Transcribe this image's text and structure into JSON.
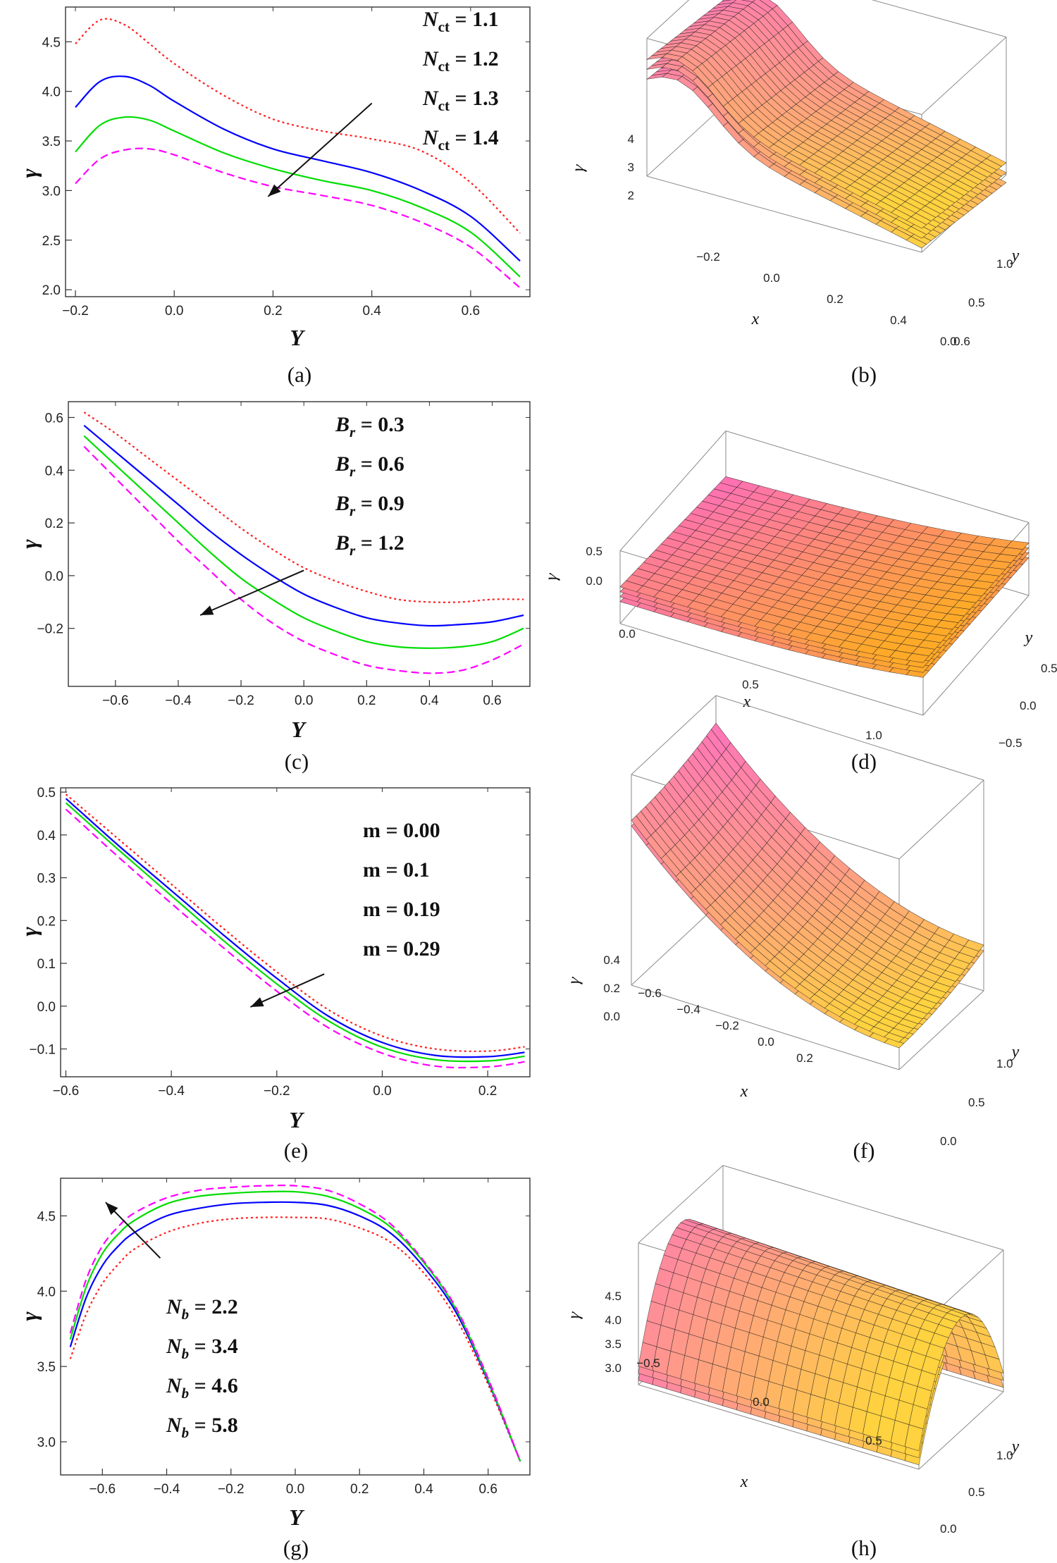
{
  "chart_data": [
    {
      "panel": "a",
      "type": "line",
      "caption": "(a)",
      "xlabel": "Y",
      "ylabel": "γ",
      "xlim": [
        -0.22,
        0.72
      ],
      "ylim": [
        1.93,
        4.85
      ],
      "xticks": [
        "-0.2",
        "0.0",
        "0.2",
        "0.4",
        "0.6"
      ],
      "yticks": [
        "2.0",
        "2.5",
        "3.0",
        "3.5",
        "4.0",
        "4.5"
      ],
      "legend": [
        "N_ct = 1.1",
        "N_ct = 1.2",
        "N_ct = 1.3",
        "N_ct = 1.4"
      ],
      "legend_placement": "top-right",
      "series": [
        {
          "name": "N_ct = 1.1",
          "color": "#ff2020",
          "style": "dotted",
          "x": [
            -0.2,
            -0.15,
            -0.1,
            -0.05,
            0.0,
            0.1,
            0.2,
            0.3,
            0.4,
            0.5,
            0.6,
            0.7
          ],
          "y": [
            4.48,
            4.72,
            4.67,
            4.48,
            4.28,
            3.96,
            3.72,
            3.6,
            3.52,
            3.4,
            3.08,
            2.57
          ]
        },
        {
          "name": "N_ct = 1.2",
          "color": "#0000ff",
          "style": "solid",
          "x": [
            -0.2,
            -0.15,
            -0.1,
            -0.05,
            0.0,
            0.1,
            0.2,
            0.3,
            0.4,
            0.5,
            0.6,
            0.7
          ],
          "y": [
            3.84,
            4.1,
            4.15,
            4.06,
            3.9,
            3.62,
            3.42,
            3.3,
            3.18,
            3.0,
            2.74,
            2.29
          ]
        },
        {
          "name": "N_ct = 1.3",
          "color": "#00dd00",
          "style": "solid",
          "x": [
            -0.2,
            -0.15,
            -0.1,
            -0.05,
            0.0,
            0.1,
            0.2,
            0.3,
            0.4,
            0.5,
            0.6,
            0.7
          ],
          "y": [
            3.39,
            3.66,
            3.74,
            3.71,
            3.6,
            3.38,
            3.22,
            3.1,
            3.0,
            2.83,
            2.58,
            2.13
          ]
        },
        {
          "name": "N_ct = 1.4",
          "color": "#ff00ff",
          "style": "dashed",
          "x": [
            -0.2,
            -0.15,
            -0.1,
            -0.05,
            0.0,
            0.1,
            0.2,
            0.3,
            0.4,
            0.5,
            0.6,
            0.7
          ],
          "y": [
            3.07,
            3.32,
            3.41,
            3.42,
            3.36,
            3.18,
            3.04,
            2.95,
            2.85,
            2.68,
            2.43,
            2.02
          ]
        }
      ],
      "annotations": [
        {
          "type": "arrow",
          "from": [
            0.4,
            3.88
          ],
          "to": [
            0.19,
            2.94
          ],
          "meaning": "increasing parameter"
        }
      ]
    },
    {
      "panel": "c",
      "type": "line",
      "caption": "(c)",
      "xlabel": "Y",
      "ylabel": "γ",
      "xlim": [
        -0.75,
        0.72
      ],
      "ylim": [
        -0.42,
        0.66
      ],
      "xticks": [
        "-0.6",
        "-0.4",
        "-0.2",
        "0.0",
        "0.2",
        "0.4",
        "0.6"
      ],
      "yticks": [
        "-0.2",
        "0.0",
        "0.2",
        "0.4",
        "0.6"
      ],
      "legend": [
        "B_r = 0.3",
        "B_r = 0.6",
        "B_r = 0.9",
        "B_r = 1.2"
      ],
      "legend_placement": "top-right",
      "series": [
        {
          "name": "B_r = 0.3",
          "color": "#ff2020",
          "style": "dotted",
          "x": [
            -0.7,
            -0.6,
            -0.5,
            -0.4,
            -0.3,
            -0.2,
            -0.1,
            0.0,
            0.1,
            0.2,
            0.3,
            0.4,
            0.5,
            0.6,
            0.7
          ],
          "y": [
            0.62,
            0.54,
            0.45,
            0.36,
            0.27,
            0.18,
            0.1,
            0.03,
            -0.02,
            -0.06,
            -0.09,
            -0.1,
            -0.1,
            -0.09,
            -0.09
          ]
        },
        {
          "name": "B_r = 0.6",
          "color": "#0000ff",
          "style": "solid",
          "x": [
            -0.7,
            -0.6,
            -0.5,
            -0.4,
            -0.3,
            -0.2,
            -0.1,
            0.0,
            0.1,
            0.2,
            0.3,
            0.4,
            0.5,
            0.6,
            0.7
          ],
          "y": [
            0.57,
            0.47,
            0.37,
            0.27,
            0.17,
            0.08,
            0.0,
            -0.07,
            -0.12,
            -0.16,
            -0.18,
            -0.19,
            -0.185,
            -0.175,
            -0.15
          ]
        },
        {
          "name": "B_r = 0.9",
          "color": "#00dd00",
          "style": "solid",
          "x": [
            -0.7,
            -0.6,
            -0.5,
            -0.4,
            -0.3,
            -0.2,
            -0.1,
            0.0,
            0.1,
            0.2,
            0.3,
            0.4,
            0.5,
            0.6,
            0.7
          ],
          "y": [
            0.53,
            0.42,
            0.31,
            0.2,
            0.09,
            -0.01,
            -0.09,
            -0.16,
            -0.21,
            -0.25,
            -0.27,
            -0.275,
            -0.27,
            -0.25,
            -0.2
          ]
        },
        {
          "name": "B_r = 1.2",
          "color": "#ff00ff",
          "style": "dashed",
          "x": [
            -0.7,
            -0.6,
            -0.5,
            -0.4,
            -0.3,
            -0.2,
            -0.1,
            0.0,
            0.1,
            0.2,
            0.3,
            0.4,
            0.5,
            0.6,
            0.7
          ],
          "y": [
            0.49,
            0.37,
            0.25,
            0.13,
            0.02,
            -0.09,
            -0.18,
            -0.25,
            -0.3,
            -0.34,
            -0.36,
            -0.37,
            -0.36,
            -0.32,
            -0.26
          ]
        }
      ],
      "annotations": [
        {
          "type": "arrow",
          "from": [
            0.0,
            0.02
          ],
          "to": [
            -0.33,
            -0.15
          ],
          "meaning": "increasing parameter"
        }
      ]
    },
    {
      "panel": "e",
      "type": "line",
      "caption": "(e)",
      "xlabel": "Y",
      "ylabel": "γ",
      "xlim": [
        -0.61,
        0.28
      ],
      "ylim": [
        -0.165,
        0.51
      ],
      "xticks": [
        "-0.6",
        "-0.4",
        "-0.2",
        "0.0",
        "0.2"
      ],
      "yticks": [
        "-0.1",
        "0.0",
        "0.1",
        "0.2",
        "0.3",
        "0.4",
        "0.5"
      ],
      "legend": [
        "m = 0.00",
        "m = 0.1",
        "m = 0.19",
        "m = 0.29"
      ],
      "legend_placement": "top-right",
      "series": [
        {
          "name": "m = 0.00",
          "color": "#ff2020",
          "style": "dotted",
          "x": [
            -0.6,
            -0.5,
            -0.4,
            -0.3,
            -0.2,
            -0.1,
            0.0,
            0.1,
            0.2,
            0.27
          ],
          "y": [
            0.495,
            0.39,
            0.285,
            0.18,
            0.08,
            -0.01,
            -0.07,
            -0.1,
            -0.105,
            -0.095
          ]
        },
        {
          "name": "m = 0.1",
          "color": "#0000ff",
          "style": "solid",
          "x": [
            -0.6,
            -0.5,
            -0.4,
            -0.3,
            -0.2,
            -0.1,
            0.0,
            0.1,
            0.2,
            0.27
          ],
          "y": [
            0.485,
            0.375,
            0.27,
            0.165,
            0.065,
            -0.025,
            -0.085,
            -0.115,
            -0.118,
            -0.108
          ]
        },
        {
          "name": "m = 0.19",
          "color": "#00dd00",
          "style": "solid",
          "x": [
            -0.6,
            -0.5,
            -0.4,
            -0.3,
            -0.2,
            -0.1,
            0.0,
            0.1,
            0.2,
            0.27
          ],
          "y": [
            0.475,
            0.365,
            0.258,
            0.152,
            0.052,
            -0.036,
            -0.096,
            -0.125,
            -0.128,
            -0.117
          ]
        },
        {
          "name": "m = 0.29",
          "color": "#ff00ff",
          "style": "dashed",
          "x": [
            -0.6,
            -0.5,
            -0.4,
            -0.3,
            -0.2,
            -0.1,
            0.0,
            0.1,
            0.2,
            0.27
          ],
          "y": [
            0.46,
            0.348,
            0.24,
            0.135,
            0.035,
            -0.052,
            -0.11,
            -0.14,
            -0.142,
            -0.13
          ]
        }
      ],
      "annotations": [
        {
          "type": "arrow",
          "from": [
            -0.11,
            0.075
          ],
          "to": [
            -0.25,
            -0.002
          ],
          "meaning": "increasing parameter"
        }
      ]
    },
    {
      "panel": "g",
      "type": "line",
      "caption": "(g)",
      "xlabel": "Y",
      "ylabel": "γ",
      "xlim": [
        -0.73,
        0.73
      ],
      "ylim": [
        2.78,
        4.75
      ],
      "xticks": [
        "-0.6",
        "-0.4",
        "-0.2",
        "0.0",
        "0.2",
        "0.4",
        "0.6"
      ],
      "yticks": [
        "3.0",
        "3.5",
        "4.0",
        "4.5"
      ],
      "legend": [
        "N_b = 2.2",
        "N_b = 3.4",
        "N_b = 4.6",
        "N_b = 5.8"
      ],
      "legend_placement": "bottom-left",
      "series": [
        {
          "name": "N_b = 2.2",
          "color": "#ff2020",
          "style": "dotted",
          "x": [
            -0.7,
            -0.65,
            -0.6,
            -0.55,
            -0.5,
            -0.4,
            -0.3,
            -0.2,
            -0.1,
            0.0,
            0.1,
            0.2,
            0.3,
            0.4,
            0.5,
            0.6,
            0.7
          ],
          "y": [
            3.55,
            3.85,
            4.05,
            4.18,
            4.28,
            4.39,
            4.45,
            4.48,
            4.49,
            4.49,
            4.48,
            4.42,
            4.32,
            4.12,
            3.82,
            3.38,
            2.87
          ]
        },
        {
          "name": "N_b = 3.4",
          "color": "#0000ff",
          "style": "solid",
          "x": [
            -0.7,
            -0.65,
            -0.6,
            -0.55,
            -0.5,
            -0.4,
            -0.3,
            -0.2,
            -0.1,
            0.0,
            0.1,
            0.2,
            0.3,
            0.4,
            0.5,
            0.6,
            0.7
          ],
          "y": [
            3.63,
            3.96,
            4.17,
            4.3,
            4.39,
            4.5,
            4.55,
            4.58,
            4.59,
            4.59,
            4.57,
            4.5,
            4.38,
            4.16,
            3.86,
            3.4,
            2.87
          ]
        },
        {
          "name": "N_b = 4.6",
          "color": "#00dd00",
          "style": "solid",
          "x": [
            -0.7,
            -0.65,
            -0.6,
            -0.55,
            -0.5,
            -0.4,
            -0.3,
            -0.2,
            -0.1,
            0.0,
            0.1,
            0.2,
            0.3,
            0.4,
            0.5,
            0.6,
            0.7
          ],
          "y": [
            3.68,
            4.03,
            4.25,
            4.38,
            4.47,
            4.58,
            4.63,
            4.65,
            4.66,
            4.66,
            4.63,
            4.55,
            4.42,
            4.19,
            3.88,
            3.41,
            2.87
          ]
        },
        {
          "name": "N_b = 5.8",
          "color": "#ff00ff",
          "style": "dashed",
          "x": [
            -0.7,
            -0.65,
            -0.6,
            -0.55,
            -0.5,
            -0.4,
            -0.3,
            -0.2,
            -0.1,
            0.0,
            0.1,
            0.2,
            0.3,
            0.4,
            0.5,
            0.6,
            0.7
          ],
          "y": [
            3.72,
            4.08,
            4.3,
            4.43,
            4.52,
            4.62,
            4.67,
            4.69,
            4.7,
            4.7,
            4.67,
            4.58,
            4.44,
            4.2,
            3.89,
            3.42,
            2.87
          ]
        }
      ],
      "annotations": [
        {
          "type": "arrow",
          "from": [
            -0.42,
            4.22
          ],
          "to": [
            -0.59,
            4.59
          ],
          "meaning": "increasing parameter"
        }
      ]
    },
    {
      "panel": "b",
      "type": "surface3d",
      "caption": "(b)",
      "xlabel": "x",
      "ylabel": "y",
      "zlabel": "γ",
      "xticks": [
        "-0.2",
        "0.0",
        "0.2",
        "0.4",
        "0.6"
      ],
      "yticks": [
        "0.0",
        "0.5",
        "1.0"
      ],
      "zticks": [
        "2",
        "3",
        "4"
      ],
      "colors": [
        "#ff66cc",
        "#ffd23f"
      ]
    },
    {
      "panel": "d",
      "type": "surface3d",
      "caption": "(d)",
      "xlabel": "x",
      "ylabel": "y",
      "zlabel": "γ",
      "xticks": [
        "0.0",
        "0.5",
        "1.0"
      ],
      "yticks": [
        "-0.5",
        "0.0",
        "0.5"
      ],
      "zticks": [
        "0.0",
        "0.5"
      ],
      "colors": [
        "#ff66cc",
        "#ffa928"
      ]
    },
    {
      "panel": "f",
      "type": "surface3d",
      "caption": "(f)",
      "xlabel": "x",
      "ylabel": "y",
      "zlabel": "γ",
      "xticks": [
        "-0.6",
        "-0.4",
        "-0.2",
        "0.0",
        "0.2"
      ],
      "yticks": [
        "0.0",
        "0.5",
        "1.0"
      ],
      "zticks": [
        "0.0",
        "0.2",
        "0.4"
      ],
      "colors": [
        "#ff66cc",
        "#ffd23f"
      ]
    },
    {
      "panel": "h",
      "type": "surface3d",
      "caption": "(h)",
      "xlabel": "x",
      "ylabel": "y",
      "zlabel": "γ",
      "xticks": [
        "-0.5",
        "0.0",
        "0.5"
      ],
      "yticks": [
        "0.0",
        "0.5",
        "1.0"
      ],
      "zticks": [
        "3.0",
        "3.5",
        "4.0",
        "4.5"
      ],
      "colors": [
        "#ff66cc",
        "#ffd23f"
      ]
    }
  ]
}
